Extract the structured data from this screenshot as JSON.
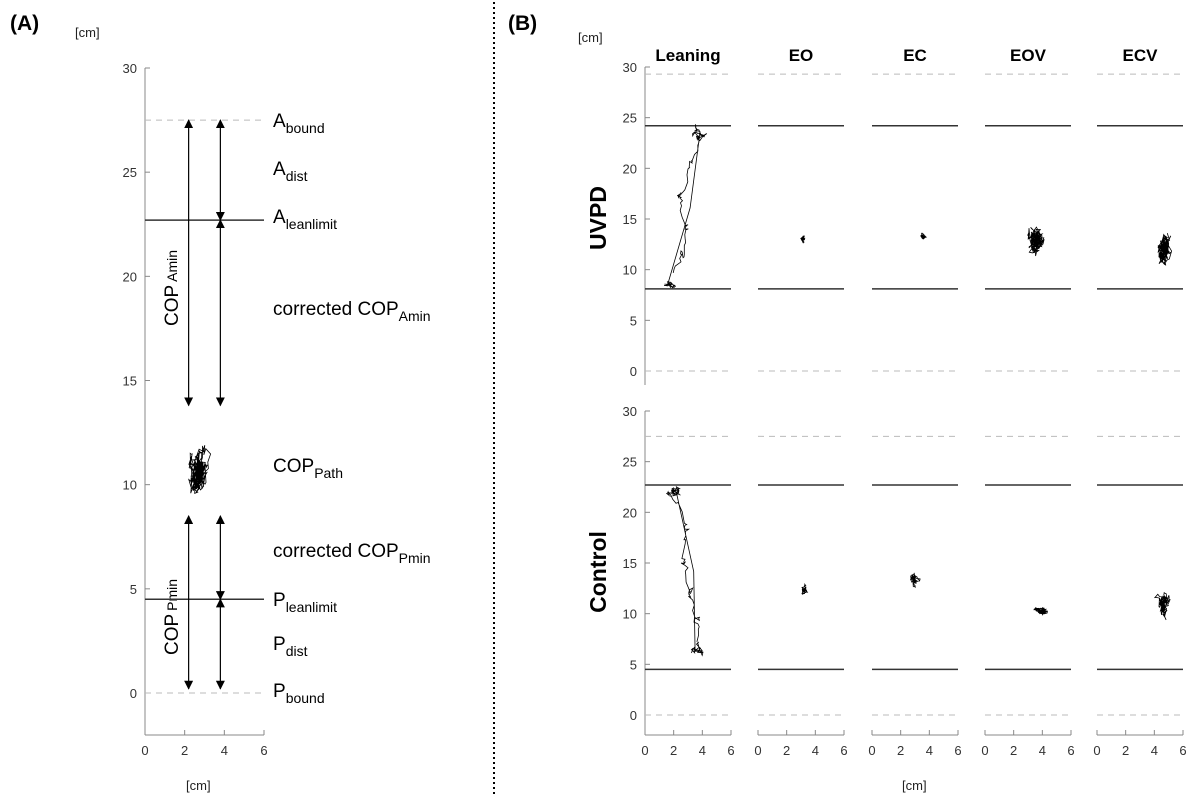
{
  "panel_a": {
    "letter": "(A)",
    "y_unit": "[cm]",
    "x_unit": "[cm]",
    "annotations": {
      "a_bound": {
        "main": "A",
        "sub": "bound"
      },
      "a_dist": {
        "main": "A",
        "sub": "dist"
      },
      "a_leanlimit": {
        "main": "A",
        "sub": "leanlimit"
      },
      "corrected_cop_amin": {
        "main": "corrected COP",
        "sub": "Amin"
      },
      "cop_path": {
        "main": "COP",
        "sub": "Path"
      },
      "corrected_cop_pmin": {
        "main": "corrected COP",
        "sub": "Pmin"
      },
      "p_leanlimit": {
        "main": "P",
        "sub": "leanlimit"
      },
      "p_dist": {
        "main": "P",
        "sub": "dist"
      },
      "p_bound": {
        "main": "P",
        "sub": "bound"
      },
      "cop_amin_vertical": {
        "main": "COP",
        "sub": "Amin"
      },
      "cop_pmin_vertical": {
        "main": "COP",
        "sub": "Pmin"
      }
    }
  },
  "panel_b": {
    "letter": "(B)",
    "y_unit": "[cm]",
    "x_unit": "[cm]",
    "conditions": [
      "Leaning",
      "EO",
      "EC",
      "EOV",
      "ECV"
    ],
    "groups": [
      "UVPD",
      "Control"
    ]
  },
  "chart_data": [
    {
      "type": "line",
      "panel": "A",
      "xlabel": "[cm]",
      "ylabel": "[cm]",
      "xlim": [
        0,
        6
      ],
      "ylim": [
        0,
        30
      ],
      "x_ticks": [
        0,
        2,
        4,
        6
      ],
      "y_ticks": [
        0,
        5,
        10,
        15,
        20,
        25,
        30
      ],
      "boundaries": {
        "a_bound": 27.5,
        "a_leanlimit": 22.7,
        "p_leanlimit": 4.5,
        "p_bound": 0
      },
      "arrows": [
        {
          "x": 2.2,
          "from": 27.5,
          "to": 13.8
        },
        {
          "x": 3.8,
          "from": 27.5,
          "to": 22.7
        },
        {
          "x": 3.8,
          "from": 22.7,
          "to": 13.8
        },
        {
          "x": 2.2,
          "from": 8.5,
          "to": 0.2
        },
        {
          "x": 3.8,
          "from": 8.5,
          "to": 4.5
        },
        {
          "x": 3.8,
          "from": 4.5,
          "to": 0.2
        }
      ],
      "cop_path_center": [
        2.7,
        10.6
      ],
      "cop_path_spread": [
        0.35,
        0.9
      ]
    },
    {
      "type": "line",
      "panel": "B",
      "xlabel": "[cm]",
      "ylabel": "[cm]",
      "xlim": [
        0,
        6
      ],
      "ylim": [
        0,
        30
      ],
      "x_ticks": [
        0,
        2,
        4,
        6
      ],
      "y_ticks": [
        0,
        5,
        10,
        15,
        20,
        25,
        30
      ],
      "conditions": [
        "Leaning",
        "EO",
        "EC",
        "EOV",
        "ECV"
      ],
      "rows": [
        {
          "group": "UVPD",
          "a_bound": 29.3,
          "a_leanlimit": 24.2,
          "p_leanlimit": 8.1,
          "p_bound": 0,
          "paths": [
            {
              "condition": "Leaning",
              "kind": "lean",
              "from": [
                1.8,
                8.8
              ],
              "to": [
                3.7,
                23.4
              ],
              "spread": [
                0.4,
                0.5
              ]
            },
            {
              "condition": "EO",
              "kind": "blob",
              "center": [
                3.1,
                13.0
              ],
              "spread": [
                0.15,
                0.35
              ]
            },
            {
              "condition": "EC",
              "kind": "blob",
              "center": [
                3.6,
                13.3
              ],
              "spread": [
                0.15,
                0.25
              ]
            },
            {
              "condition": "EOV",
              "kind": "blob",
              "center": [
                3.6,
                12.9
              ],
              "spread": [
                0.5,
                1.2
              ]
            },
            {
              "condition": "ECV",
              "kind": "blob",
              "center": [
                4.7,
                12.0
              ],
              "spread": [
                0.45,
                1.3
              ]
            }
          ]
        },
        {
          "group": "Control",
          "a_bound": 27.5,
          "a_leanlimit": 22.7,
          "p_leanlimit": 4.5,
          "p_bound": 0,
          "paths": [
            {
              "condition": "Leaning",
              "kind": "lean",
              "from": [
                3.6,
                6.5
              ],
              "to": [
                2.2,
                21.8
              ],
              "spread": [
                0.5,
                0.6
              ]
            },
            {
              "condition": "EO",
              "kind": "blob",
              "center": [
                3.2,
                12.3
              ],
              "spread": [
                0.2,
                0.35
              ]
            },
            {
              "condition": "EC",
              "kind": "blob",
              "center": [
                2.9,
                13.3
              ],
              "spread": [
                0.2,
                0.5
              ]
            },
            {
              "condition": "EOV",
              "kind": "blob",
              "center": [
                3.9,
                10.3
              ],
              "spread": [
                0.45,
                0.35
              ]
            },
            {
              "condition": "ECV",
              "kind": "blob",
              "center": [
                4.7,
                11.0
              ],
              "spread": [
                0.4,
                0.9
              ]
            }
          ]
        }
      ]
    }
  ]
}
